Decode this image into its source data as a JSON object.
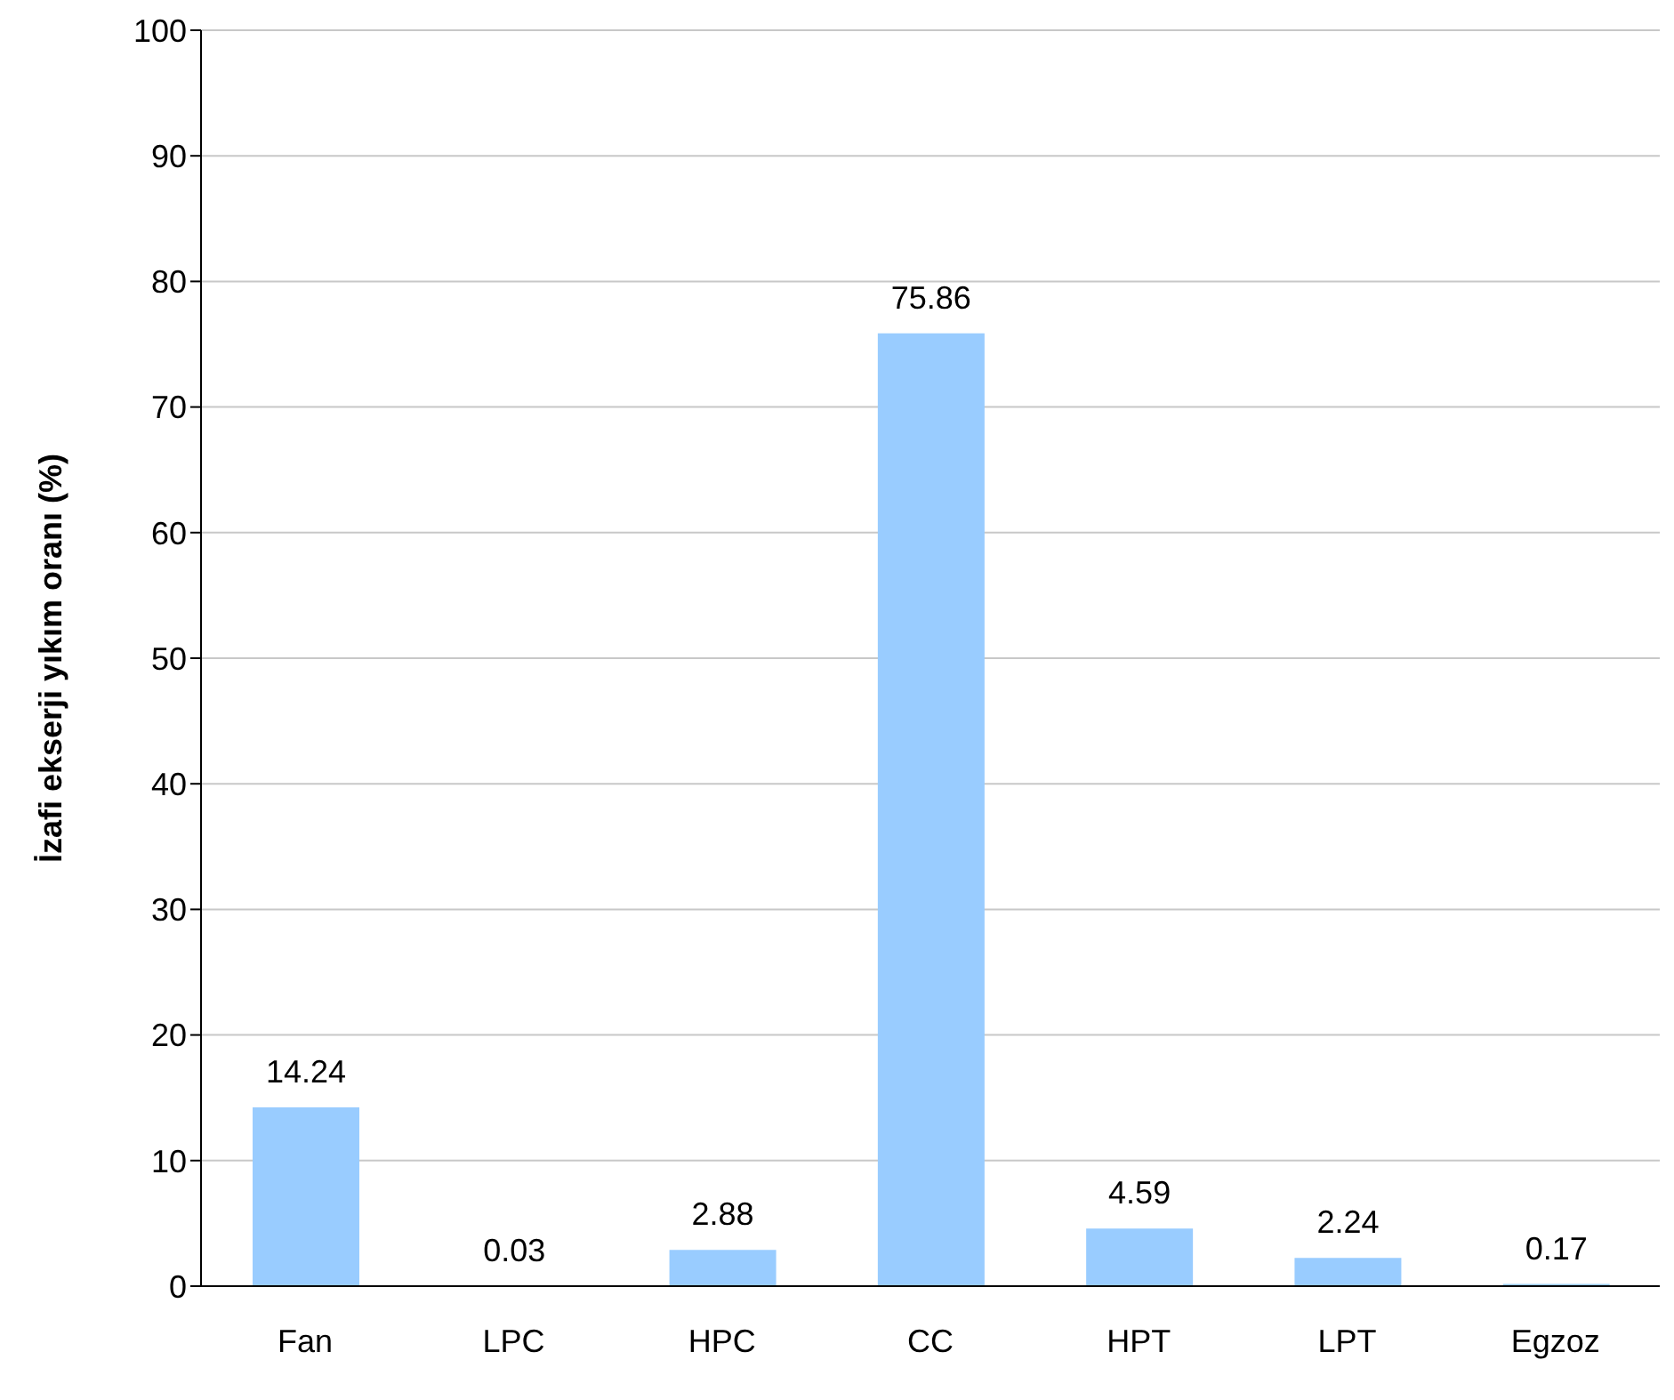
{
  "chart_data": {
    "type": "bar",
    "ylabel": "İzafi ekserji yıkım oranı (%)",
    "categories": [
      "Fan",
      "LPC",
      "HPC",
      "CC",
      "HPT",
      "LPT",
      "Egzoz"
    ],
    "values": [
      14.24,
      0.03,
      2.88,
      75.86,
      4.59,
      2.24,
      0.17
    ],
    "color": "#99ccff",
    "ylim": [
      0,
      100
    ],
    "yticks": [
      0,
      10,
      20,
      30,
      40,
      50,
      60,
      70,
      80,
      90,
      100
    ],
    "grid": "y",
    "data_labels": true
  }
}
